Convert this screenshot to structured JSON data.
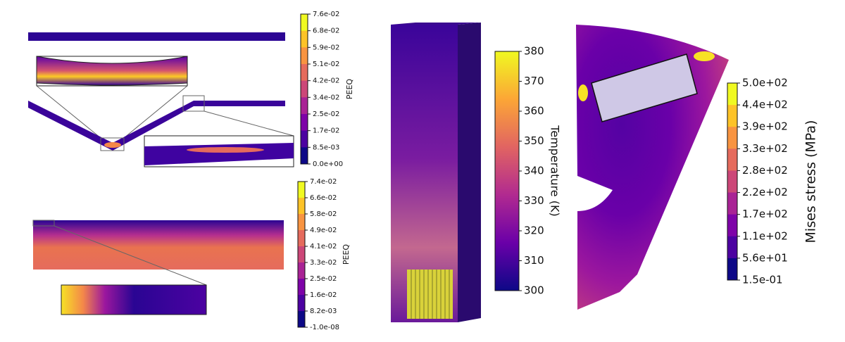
{
  "panels": [
    {
      "colorbar": {
        "label": "PEEQ",
        "ticks": [
          "7.6e-02",
          "6.8e-02",
          "5.9e-02",
          "5.1e-02",
          "4.2e-02",
          "3.4e-02",
          "2.5e-02",
          "1.7e-02",
          "8.5e-03",
          "0.0e+00"
        ]
      }
    },
    {
      "colorbar": {
        "label": "PEEQ",
        "ticks": [
          "7.4e-02",
          "6.6e-02",
          "5.8e-02",
          "4.9e-02",
          "4.1e-02",
          "3.3e-02",
          "2.5e-02",
          "1.6e-02",
          "8.2e-03",
          "-1.0e-08"
        ]
      }
    },
    {
      "colorbar": {
        "label": "Temperature (K)",
        "ticks": [
          "380",
          "370",
          "360",
          "350",
          "340",
          "330",
          "320",
          "310",
          "300"
        ]
      }
    },
    {
      "colorbar": {
        "label": "Mises stress (MPa)",
        "ticks": [
          "5.0e+02",
          "4.4e+02",
          "3.9e+02",
          "3.3e+02",
          "2.8e+02",
          "2.2e+02",
          "1.7e+02",
          "1.1e+02",
          "5.6e+01",
          "1.5e-01"
        ]
      }
    }
  ]
}
